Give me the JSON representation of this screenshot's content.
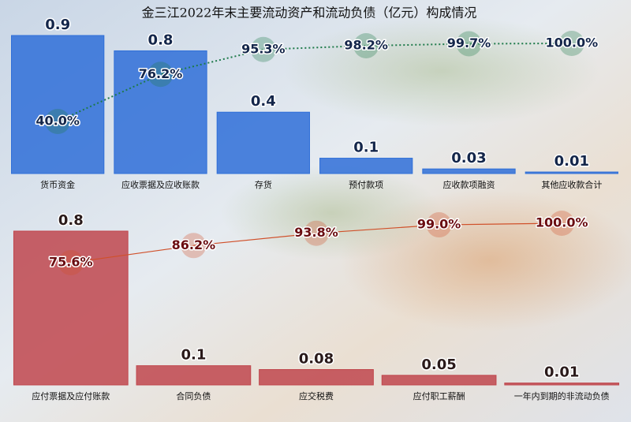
{
  "chart_data": [
    {
      "type": "pareto",
      "title": "金三江2022年末主要流动资产和流动负债（亿元）构成情况",
      "categories": [
        "货币资金",
        "应收票据及应收账款",
        "存货",
        "预付款项",
        "应收款项融资",
        "其他应收款合计"
      ],
      "values": [
        0.9,
        0.8,
        0.4,
        0.1,
        0.03,
        0.01
      ],
      "color": "#2f6fd8",
      "cumulative": {
        "values": [
          40.0,
          76.2,
          95.3,
          98.2,
          99.7,
          100.0
        ],
        "value_labels": [
          "40.0%",
          "76.2%",
          "95.3%",
          "98.2%",
          "99.7%",
          "100.0%"
        ],
        "color": "#1e7a4a"
      }
    },
    {
      "type": "pareto",
      "categories": [
        "应付票据及应付账款",
        "合同负债",
        "应交税费",
        "应付职工薪酬",
        "一年内到期的非流动负债"
      ],
      "values": [
        0.8,
        0.1,
        0.08,
        0.05,
        0.01
      ],
      "color": "#c0474d",
      "cumulative": {
        "values": [
          75.6,
          86.2,
          93.8,
          99.0,
          100.0
        ],
        "value_labels": [
          "75.6%",
          "86.2%",
          "93.8%",
          "99.0%",
          "100.0%"
        ],
        "color": "#d0502a"
      }
    }
  ]
}
